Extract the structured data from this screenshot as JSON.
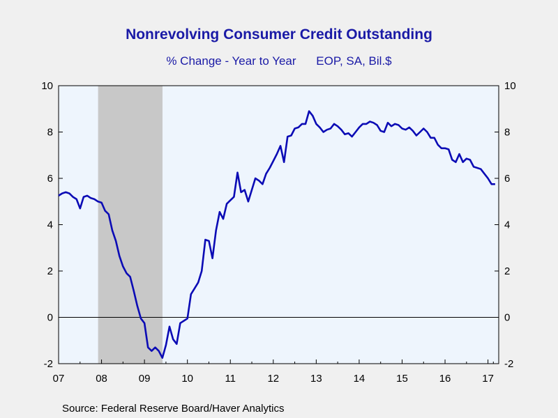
{
  "header": {
    "title": "Nonrevolving Consumer Credit Outstanding",
    "subtitle_left": "% Change - Year to Year",
    "subtitle_right": "EOP, SA, Bil.$"
  },
  "footer": {
    "source": "Source:  Federal Reserve Board/Haver Analytics"
  },
  "colors": {
    "series": "#0b0bb5",
    "plot_background": "#eef5fd",
    "recession": "#c8c8c8",
    "title": "#1a1aa6"
  },
  "chart_data": {
    "type": "line",
    "title": "Nonrevolving Consumer Credit Outstanding",
    "subtitle": "% Change - Year to Year    EOP, SA, Bil.$",
    "xlabel": "",
    "ylabel": "",
    "xlim": [
      2007.0,
      2017.25
    ],
    "ylim": [
      -2,
      10
    ],
    "yticks": [
      -2,
      0,
      2,
      4,
      6,
      8,
      10
    ],
    "xtick_labels": [
      "07",
      "08",
      "09",
      "10",
      "11",
      "12",
      "13",
      "14",
      "15",
      "16",
      "17"
    ],
    "xtick_years": [
      2007,
      2008,
      2009,
      2010,
      2011,
      2012,
      2013,
      2014,
      2015,
      2016,
      2017
    ],
    "grid": false,
    "zero_line": true,
    "dual_axis": true,
    "recession_shading": [
      [
        2007.92,
        2009.42
      ]
    ],
    "series": [
      {
        "name": "",
        "x": [
          2007.0,
          2007.083,
          2007.167,
          2007.25,
          2007.333,
          2007.417,
          2007.5,
          2007.583,
          2007.667,
          2007.75,
          2007.833,
          2007.917,
          2008.0,
          2008.083,
          2008.167,
          2008.25,
          2008.333,
          2008.417,
          2008.5,
          2008.583,
          2008.667,
          2008.75,
          2008.833,
          2008.917,
          2009.0,
          2009.083,
          2009.167,
          2009.25,
          2009.333,
          2009.417,
          2009.5,
          2009.583,
          2009.667,
          2009.75,
          2009.833,
          2009.917,
          2010.0,
          2010.083,
          2010.167,
          2010.25,
          2010.333,
          2010.417,
          2010.5,
          2010.583,
          2010.667,
          2010.75,
          2010.833,
          2010.917,
          2011.0,
          2011.083,
          2011.167,
          2011.25,
          2011.333,
          2011.417,
          2011.5,
          2011.583,
          2011.667,
          2011.75,
          2011.833,
          2011.917,
          2012.0,
          2012.083,
          2012.167,
          2012.25,
          2012.333,
          2012.417,
          2012.5,
          2012.583,
          2012.667,
          2012.75,
          2012.833,
          2012.917,
          2013.0,
          2013.083,
          2013.167,
          2013.25,
          2013.333,
          2013.417,
          2013.5,
          2013.583,
          2013.667,
          2013.75,
          2013.833,
          2013.917,
          2014.0,
          2014.083,
          2014.167,
          2014.25,
          2014.333,
          2014.417,
          2014.5,
          2014.583,
          2014.667,
          2014.75,
          2014.833,
          2014.917,
          2015.0,
          2015.083,
          2015.167,
          2015.25,
          2015.333,
          2015.417,
          2015.5,
          2015.583,
          2015.667,
          2015.75,
          2015.833,
          2015.917,
          2016.0,
          2016.083,
          2016.167,
          2016.25,
          2016.333,
          2016.417,
          2016.5,
          2016.583,
          2016.667,
          2016.75,
          2016.833,
          2016.917,
          2017.0,
          2017.083,
          2017.167
        ],
        "values": [
          5.25,
          5.35,
          5.4,
          5.35,
          5.2,
          5.1,
          4.7,
          5.2,
          5.25,
          5.15,
          5.1,
          5.0,
          4.95,
          4.6,
          4.45,
          3.75,
          3.3,
          2.65,
          2.2,
          1.9,
          1.75,
          1.15,
          0.5,
          -0.05,
          -0.25,
          -1.3,
          -1.45,
          -1.3,
          -1.45,
          -1.75,
          -1.2,
          -0.4,
          -0.95,
          -1.15,
          -0.25,
          -0.15,
          -0.05,
          1.0,
          1.25,
          1.5,
          2.0,
          3.35,
          3.3,
          2.55,
          3.75,
          4.55,
          4.25,
          4.9,
          5.05,
          5.2,
          6.25,
          5.4,
          5.5,
          5.0,
          5.5,
          6.0,
          5.9,
          5.75,
          6.2,
          6.45,
          6.75,
          7.05,
          7.4,
          6.7,
          7.8,
          7.85,
          8.15,
          8.2,
          8.35,
          8.35,
          8.9,
          8.7,
          8.35,
          8.2,
          8.0,
          8.1,
          8.15,
          8.35,
          8.25,
          8.1,
          7.9,
          7.95,
          7.8,
          8.0,
          8.2,
          8.35,
          8.35,
          8.45,
          8.4,
          8.3,
          8.05,
          8.0,
          8.4,
          8.25,
          8.35,
          8.3,
          8.15,
          8.1,
          8.2,
          8.05,
          7.85,
          8.0,
          8.15,
          8.0,
          7.75,
          7.75,
          7.45,
          7.3,
          7.3,
          7.25,
          6.8,
          6.7,
          7.05,
          6.7,
          6.85,
          6.8,
          6.5,
          6.45,
          6.4,
          6.2,
          6.0,
          5.75,
          5.75
        ]
      }
    ]
  }
}
